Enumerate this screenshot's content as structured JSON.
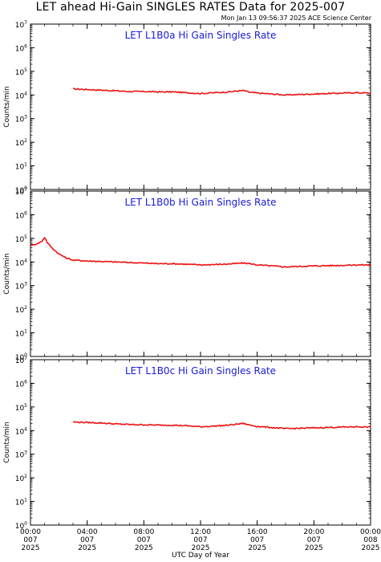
{
  "title": "LET ahead Hi-Gain SINGLES RATES Data for 2025-007",
  "timestamp": "Mon Jan 13 09:56:37 2025 ACE Science Center",
  "chart_data": {
    "type": "line",
    "xlabel": "UTC Day of Year",
    "ylabel": "Counts/min",
    "y_scale": "log",
    "ylim": [
      1,
      10000000
    ],
    "xlim": [
      0,
      24
    ],
    "y_tick_bases": [
      "10",
      "10",
      "10",
      "10",
      "10",
      "10",
      "10",
      "10"
    ],
    "y_tick_exponents": [
      "0",
      "1",
      "2",
      "3",
      "4",
      "5",
      "6",
      "7"
    ],
    "x_ticks": [
      {
        "hour": 0,
        "time": "00:00",
        "doy": "007",
        "year": "2025"
      },
      {
        "hour": 4,
        "time": "04:00",
        "doy": "007",
        "year": "2025"
      },
      {
        "hour": 8,
        "time": "08:00",
        "doy": "007",
        "year": "2025"
      },
      {
        "hour": 12,
        "time": "12:00",
        "doy": "007",
        "year": "2025"
      },
      {
        "hour": 16,
        "time": "16:00",
        "doy": "007",
        "year": "2025"
      },
      {
        "hour": 20,
        "time": "20:00",
        "doy": "007",
        "year": "2025"
      },
      {
        "hour": 24,
        "time": "00:00",
        "doy": "008",
        "year": "2025"
      }
    ],
    "line_color": "#ee1111",
    "panels": [
      {
        "title": "LET L1B0a Hi Gain Singles Rate",
        "x": [
          3.0,
          4.0,
          5.0,
          6.0,
          7.0,
          8.0,
          9.0,
          10.0,
          11.0,
          12.0,
          13.0,
          14.0,
          14.5,
          15.0,
          15.5,
          16.0,
          17.0,
          18.0,
          19.0,
          20.0,
          21.0,
          22.0,
          23.0,
          24.0
        ],
        "y": [
          18000,
          17000,
          16000,
          15000,
          14000,
          14000,
          13500,
          13500,
          12500,
          11500,
          12500,
          13500,
          14500,
          15500,
          13000,
          12000,
          11000,
          10000,
          10500,
          11000,
          11500,
          12000,
          12500,
          12000
        ]
      },
      {
        "title": "LET L1B0b Hi Gain Singles Rate",
        "x": [
          0.0,
          0.5,
          0.8,
          1.0,
          1.2,
          1.5,
          2.0,
          2.5,
          3.0,
          4.0,
          5.0,
          6.0,
          7.0,
          8.0,
          9.0,
          10.0,
          11.0,
          12.0,
          13.0,
          14.0,
          15.0,
          15.5,
          16.0,
          17.0,
          18.0,
          19.0,
          20.0,
          21.0,
          22.0,
          23.0,
          24.0
        ],
        "y": [
          50000,
          60000,
          75000,
          110000,
          65000,
          40000,
          22000,
          15000,
          12000,
          11000,
          10500,
          10000,
          9500,
          9000,
          8500,
          8500,
          8000,
          7500,
          7800,
          8200,
          9000,
          8500,
          7500,
          6800,
          6200,
          6500,
          6800,
          7000,
          7200,
          7500,
          7500
        ]
      },
      {
        "title": "LET L1B0c Hi Gain Singles Rate",
        "x": [
          3.0,
          4.0,
          5.0,
          6.0,
          7.0,
          8.0,
          9.0,
          10.0,
          11.0,
          12.0,
          13.0,
          14.0,
          14.5,
          15.0,
          15.5,
          16.0,
          17.0,
          18.0,
          19.0,
          20.0,
          21.0,
          22.0,
          23.0,
          24.0
        ],
        "y": [
          23000,
          22000,
          21000,
          19000,
          18000,
          17500,
          17000,
          17000,
          16000,
          14500,
          15500,
          17000,
          18500,
          20000,
          17000,
          15000,
          13500,
          12000,
          12500,
          13000,
          13500,
          14000,
          14500,
          14000
        ]
      }
    ]
  }
}
